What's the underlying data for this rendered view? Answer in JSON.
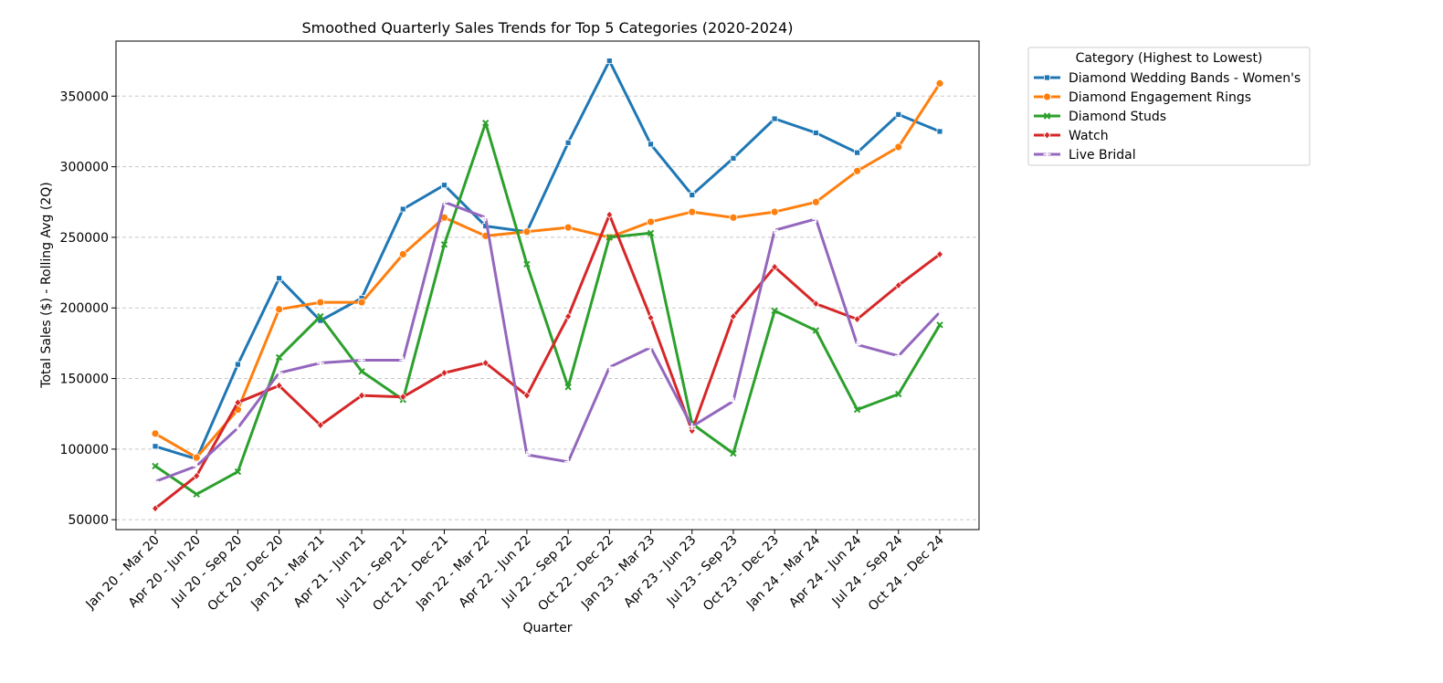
{
  "chart_data": {
    "type": "line",
    "title": "Smoothed Quarterly Sales Trends for Top 5 Categories (2020-2024)",
    "xlabel": "Quarter",
    "ylabel": "Total Sales ($) - Rolling Avg (2Q)",
    "ylim": [
      43000,
      389000
    ],
    "yticks": [
      50000,
      100000,
      150000,
      200000,
      250000,
      300000,
      350000
    ],
    "grid": "horizontal dashed",
    "legend_placement": "outside top-right",
    "legend_title": "Category (Highest to Lowest)",
    "categories": [
      "Jan 20 - Mar 20",
      "Apr 20 - Jun 20",
      "Jul 20 - Sep 20",
      "Oct 20 - Dec 20",
      "Jan 21 - Mar 21",
      "Apr 21 - Jun 21",
      "Jul 21 - Sep 21",
      "Oct 21 - Dec 21",
      "Jan 22 - Mar 22",
      "Apr 22 - Jun 22",
      "Jul 22 - Sep 22",
      "Oct 22 - Dec 22",
      "Jan 23 - Mar 23",
      "Apr 23 - Jun 23",
      "Jul 23 - Sep 23",
      "Oct 23 - Dec 23",
      "Jan 24 - Mar 24",
      "Apr 24 - Jun 24",
      "Jul 24 - Sep 24",
      "Oct 24 - Dec 24"
    ],
    "series": [
      {
        "name": "Diamond Wedding Bands  -  Women's",
        "color": "#1f77b4",
        "marker": "square",
        "values": [
          102000,
          93000,
          160000,
          221000,
          191000,
          207000,
          270000,
          287000,
          258000,
          254000,
          317000,
          375000,
          316000,
          280000,
          306000,
          334000,
          324000,
          310000,
          337000,
          325000
        ]
      },
      {
        "name": "Diamond Engagement Rings",
        "color": "#ff7f0e",
        "marker": "circle",
        "values": [
          111000,
          94000,
          128000,
          199000,
          204000,
          204000,
          238000,
          264000,
          251000,
          254000,
          257000,
          250000,
          261000,
          268000,
          264000,
          268000,
          275000,
          297000,
          314000,
          359000
        ]
      },
      {
        "name": "Diamond Studs",
        "color": "#2ca02c",
        "marker": "x",
        "values": [
          88000,
          68000,
          84000,
          165000,
          194000,
          155000,
          135000,
          245000,
          331000,
          231000,
          144000,
          250000,
          253000,
          118000,
          97000,
          198000,
          184000,
          128000,
          139000,
          188000
        ]
      },
      {
        "name": "Watch",
        "color": "#d62728",
        "marker": "diamond",
        "values": [
          58000,
          81000,
          133000,
          145000,
          117000,
          138000,
          137000,
          154000,
          161000,
          138000,
          194000,
          266000,
          193000,
          113000,
          194000,
          229000,
          203000,
          192000,
          216000,
          238000
        ]
      },
      {
        "name": "Live Bridal",
        "color": "#9467bd",
        "marker": "plus",
        "values": [
          77000,
          88000,
          115000,
          154000,
          161000,
          163000,
          163000,
          275000,
          264000,
          96000,
          91000,
          158000,
          172000,
          116000,
          134000,
          255000,
          263000,
          174000,
          166000,
          197000
        ]
      }
    ]
  }
}
